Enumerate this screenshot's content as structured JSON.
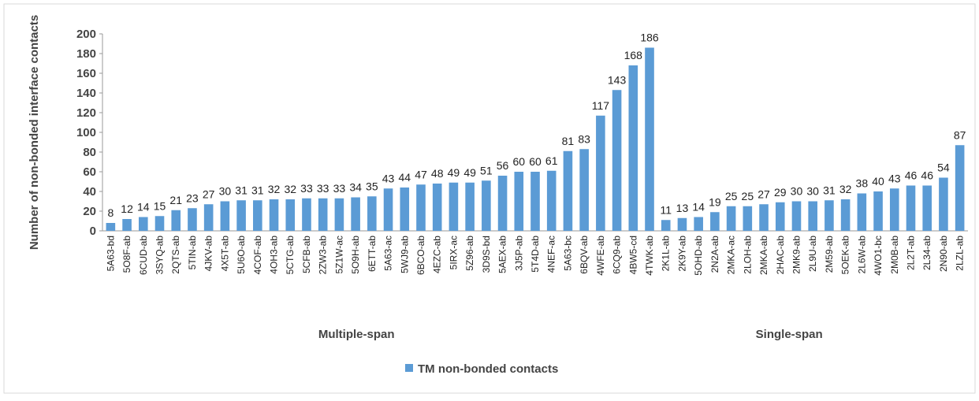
{
  "chart_data": {
    "type": "bar",
    "y_label": "Number of non-bonded interface contacts",
    "ylim": [
      0,
      200
    ],
    "yticks": [
      0,
      20,
      40,
      60,
      80,
      100,
      120,
      140,
      160,
      180,
      200
    ],
    "series": [
      {
        "name": "TM non-bonded contacts",
        "color": "#5b9bd5"
      }
    ],
    "groups": [
      {
        "label": "Multiple-span",
        "categories": [
          "5A63-bd",
          "5O8F-ab",
          "6CUD-ab",
          "3SYQ-ab",
          "2QTS-ab",
          "5TIN-ab",
          "4JKV-ab",
          "4X5T-ab",
          "5U6O-ab",
          "4COF-ab",
          "4OH3-ab",
          "5CTG-ab",
          "5CFB-ab",
          "2ZW3-ab",
          "5Z1W-ac",
          "5O9H-ab",
          "6ETT-ab",
          "5A63-ac",
          "5WJ9-ab",
          "6BCO-ab",
          "4EZC-ab",
          "5IRX-ac",
          "5Z96-ab",
          "3D9S-bd",
          "5AEX-ab",
          "3J5P-ab",
          "5T4D-ab",
          "4NEF-ac",
          "5A63-bc",
          "6BQV-ab",
          "4WFE-ab",
          "6CQ9-ab",
          "4BW5-cd",
          "4TWK-ab"
        ],
        "values": [
          8,
          12,
          14,
          15,
          21,
          23,
          27,
          30,
          31,
          31,
          32,
          32,
          33,
          33,
          33,
          34,
          35,
          43,
          44,
          47,
          48,
          49,
          49,
          51,
          56,
          60,
          60,
          61,
          81,
          83,
          117,
          143,
          168,
          186
        ]
      },
      {
        "label": "Single-span",
        "categories": [
          "2K1L-ab",
          "2K9Y-ab",
          "5OHD-ab",
          "2N2A-ab",
          "2MKA-ac",
          "2LOH-ab",
          "2MKA-ab",
          "2HAC-ab",
          "2MK9-ab",
          "2L9U-ab",
          "2M59-ab",
          "5OEK-ab",
          "2L6W-ab",
          "4WO1-bc",
          "2M0B-ab",
          "2L2T-ab",
          "2L34-ab",
          "2N90-ab",
          "2LZL-ab"
        ],
        "values": [
          11,
          13,
          14,
          19,
          25,
          25,
          27,
          29,
          30,
          30,
          31,
          32,
          38,
          40,
          43,
          46,
          46,
          54,
          87
        ]
      }
    ]
  }
}
